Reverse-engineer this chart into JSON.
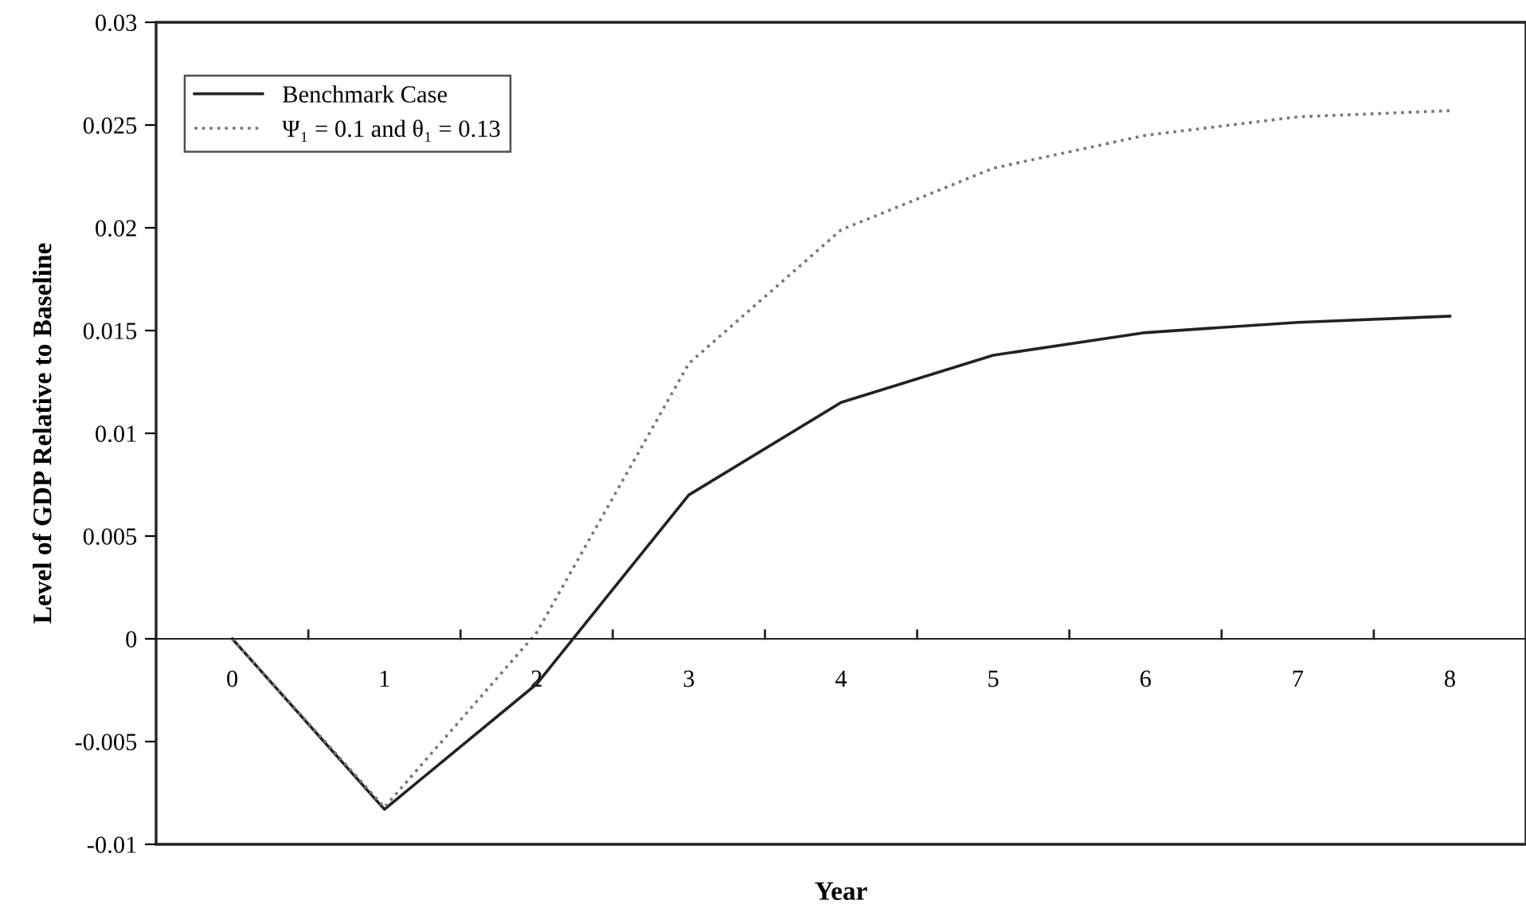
{
  "chart_data": {
    "type": "line",
    "xlabel": "Year",
    "ylabel": "Level of GDP Relative to Baseline",
    "categories": [
      "0",
      "1",
      "2",
      "3",
      "4",
      "5",
      "6",
      "7",
      "8"
    ],
    "series": [
      {
        "name": "Benchmark Case",
        "color": "#222222",
        "line_style": "solid",
        "values": [
          0,
          -0.0083,
          -0.0022,
          0.007,
          0.0115,
          0.0138,
          0.0149,
          0.0154,
          0.0157
        ]
      },
      {
        "name": "Ψ₁ = 0.1 and θ₁ = 0.13",
        "color": "#777777",
        "line_style": "dotted",
        "values": [
          0,
          -0.0082,
          0.0003,
          0.0134,
          0.0199,
          0.0229,
          0.0245,
          0.0254,
          0.0257
        ]
      }
    ],
    "ylim": [
      -0.01,
      0.03
    ],
    "yticks": [
      {
        "value": -0.01,
        "label": "-0.01"
      },
      {
        "value": -0.005,
        "label": "-0.005"
      },
      0,
      0.005,
      0.01,
      0.015,
      0.02,
      0.025,
      0.03
    ],
    "grid": false,
    "legend": "top left",
    "marker": "none"
  }
}
